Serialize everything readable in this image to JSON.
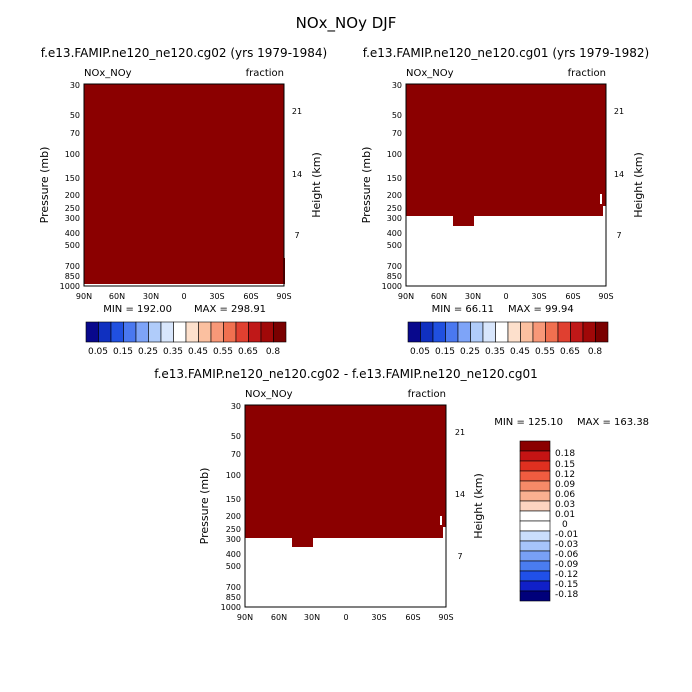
{
  "figure_title": "NOx_NOy DJF",
  "colors": {
    "fill": "#8b0000",
    "axis": "#000000",
    "background": "#ffffff",
    "palette_abs": [
      "#08088c",
      "#1030c0",
      "#2050e0",
      "#4a78f0",
      "#7ea4f8",
      "#b0ccfa",
      "#d8e6fc",
      "#ffffff",
      "#fde0cc",
      "#fbc0a0",
      "#f89878",
      "#f07050",
      "#e04030",
      "#c01818",
      "#a00808",
      "#7a0000"
    ],
    "palette_diff": [
      "#00007a",
      "#1020c8",
      "#2050e8",
      "#4a7cf0",
      "#78a0f6",
      "#a6c4fa",
      "#cadefc",
      "#ffffff",
      "#ffffff",
      "#fcd4c0",
      "#fab090",
      "#f68a68",
      "#f05c40",
      "#e03020",
      "#c41414",
      "#8a0000"
    ]
  },
  "chart_data": [
    {
      "type": "heatmap",
      "title": "f.e13.FAMIP.ne120_ne120.cg02 (yrs 1979-1984)",
      "left_label": "NOx_NOy",
      "right_label": "fraction",
      "xlabel": "",
      "ylabel": "Pressure (mb)",
      "ylabel_right": "Height (km)",
      "xticks": [
        "90N",
        "60N",
        "30N",
        "0",
        "30S",
        "60S",
        "90S"
      ],
      "yticks": [
        "30",
        "50",
        "70",
        "100",
        "150",
        "200",
        "250",
        "300",
        "400",
        "500",
        "700",
        "850",
        "1000"
      ],
      "yticks_right": [
        "21",
        "14",
        "7"
      ],
      "field_top_pressure": 30,
      "field_bottom_pressure": 1000,
      "min_label": "MIN = 192.00",
      "max_label": "MAX = 298.91",
      "colorbar_labels": [
        "0.05",
        "0.15",
        "0.25",
        "0.35",
        "0.45",
        "0.55",
        "0.65",
        "0.8"
      ]
    },
    {
      "type": "heatmap",
      "title": "f.e13.FAMIP.ne120_ne120.cg01 (yrs 1979-1982)",
      "left_label": "NOx_NOy",
      "right_label": "fraction",
      "xlabel": "",
      "ylabel": "Pressure (mb)",
      "ylabel_right": "Height (km)",
      "xticks": [
        "90N",
        "60N",
        "30N",
        "0",
        "30S",
        "60S",
        "90S"
      ],
      "yticks": [
        "30",
        "50",
        "70",
        "100",
        "150",
        "200",
        "250",
        "300",
        "400",
        "500",
        "700",
        "850",
        "1000"
      ],
      "yticks_right": [
        "21",
        "14",
        "7"
      ],
      "field_top_pressure": 30,
      "field_bottom_pressure": 300,
      "min_label": "MIN = 66.11",
      "max_label": "MAX = 99.94",
      "colorbar_labels": [
        "0.05",
        "0.15",
        "0.25",
        "0.35",
        "0.45",
        "0.55",
        "0.65",
        "0.8"
      ]
    },
    {
      "type": "heatmap",
      "title": "f.e13.FAMIP.ne120_ne120.cg02 - f.e13.FAMIP.ne120_ne120.cg01",
      "left_label": "NOx_NOy",
      "right_label": "fraction",
      "xlabel": "",
      "ylabel": "Pressure (mb)",
      "ylabel_right": "Height (km)",
      "xticks": [
        "90N",
        "60N",
        "30N",
        "0",
        "30S",
        "60S",
        "90S"
      ],
      "yticks": [
        "30",
        "50",
        "70",
        "100",
        "150",
        "200",
        "250",
        "300",
        "400",
        "500",
        "700",
        "850",
        "1000"
      ],
      "yticks_right": [
        "21",
        "14",
        "7"
      ],
      "field_top_pressure": 30,
      "field_bottom_pressure": 300,
      "min_label": "MIN = 125.10",
      "max_label": "MAX = 163.38",
      "colorbar_labels": [
        "0.18",
        "0.15",
        "0.12",
        "0.09",
        "0.06",
        "0.03",
        "0.01",
        "0",
        "-0.01",
        "-0.03",
        "-0.06",
        "-0.09",
        "-0.12",
        "-0.15",
        "-0.18"
      ]
    }
  ]
}
